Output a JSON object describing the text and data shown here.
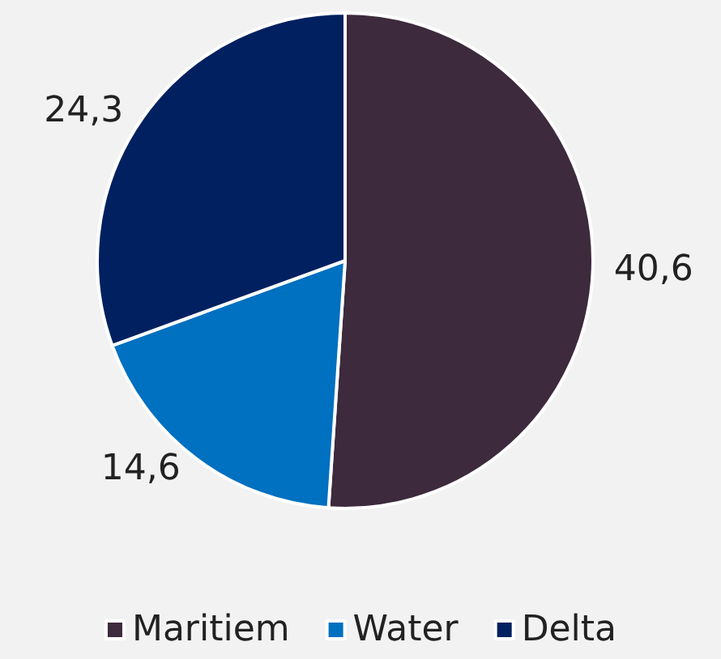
{
  "chart_data": {
    "type": "pie",
    "categories": [
      "Maritiem",
      "Water",
      "Delta"
    ],
    "values": [
      40.6,
      14.6,
      24.3
    ],
    "colors": [
      "#3d2a3c",
      "#0070c0",
      "#002060"
    ],
    "value_labels": [
      "40,6",
      "14,6",
      "24,3"
    ],
    "legend": "bottom"
  }
}
